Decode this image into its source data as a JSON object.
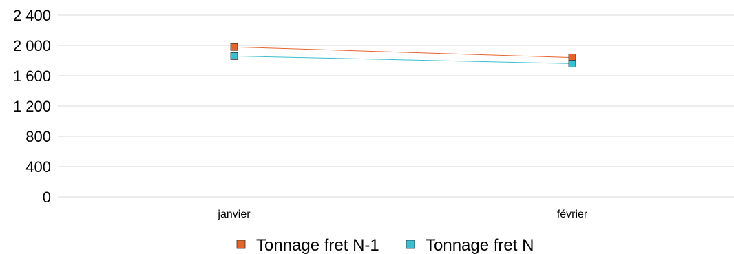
{
  "chart_data": {
    "type": "line",
    "categories": [
      "janvier",
      "février"
    ],
    "series": [
      {
        "name": "Tonnage fret N-1",
        "values": [
          1980,
          1840
        ],
        "color": "#e8632b"
      },
      {
        "name": "Tonnage fret N",
        "values": [
          1860,
          1760
        ],
        "color": "#3bbfcf"
      }
    ],
    "yticks": [
      "0",
      "400",
      "800",
      "1 200",
      "1 600",
      "2 000",
      "2 400"
    ],
    "ylim": [
      0,
      2400
    ],
    "ystep": 400,
    "grid": true,
    "legend": "bottom-center"
  }
}
